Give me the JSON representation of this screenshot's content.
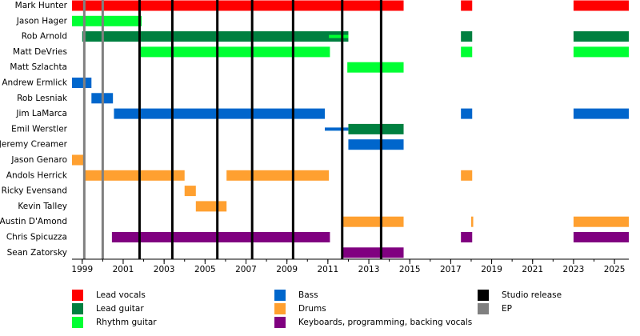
{
  "chart_data": {
    "type": "timeline",
    "categories": [
      "Mark Hunter",
      "Jason Hager",
      "Rob Arnold",
      "Matt DeVries",
      "Matt Szlachta",
      "Andrew Ermlick",
      "Rob Lesniak",
      "Jim LaMarca",
      "Emil Werstler",
      "Jeremy Creamer",
      "Jason Genaro",
      "Andols Herrick",
      "Ricky Evensand",
      "Kevin Talley",
      "Austin D'Amond",
      "Chris Spicuzza",
      "Sean Zatorsky"
    ],
    "xlim": [
      1998.5,
      2025.7
    ],
    "xticks": [
      1999,
      2001,
      2003,
      2005,
      2007,
      2009,
      2011,
      2013,
      2015,
      2017,
      2019,
      2021,
      2023,
      2025
    ],
    "series": [
      {
        "name": "Lead vocals",
        "color": "#ff0000",
        "bars": [
          {
            "member": "Mark Hunter",
            "start": 1998.5,
            "end": 2014.7
          },
          {
            "member": "Mark Hunter",
            "start": 2017.5,
            "end": 2018.05
          },
          {
            "member": "Mark Hunter",
            "start": 2023,
            "end": 2025.7
          }
        ]
      },
      {
        "name": "Lead guitar",
        "color": "#008040",
        "bars": [
          {
            "member": "Jason Hager",
            "start": 1998.5,
            "end": 1999,
            "thin": true
          },
          {
            "member": "Rob Arnold",
            "start": 1999,
            "end": 2012
          },
          {
            "member": "Rob Arnold",
            "start": 2017.5,
            "end": 2018.05
          },
          {
            "member": "Rob Arnold",
            "start": 2023,
            "end": 2025.7
          },
          {
            "member": "Emil Werstler",
            "start": 2012,
            "end": 2014.7
          }
        ]
      },
      {
        "name": "Rhythm guitar",
        "color": "#00ff33",
        "bars": [
          {
            "member": "Jason Hager",
            "start": 1998.5,
            "end": 2001.9
          },
          {
            "member": "Rob Arnold",
            "start": 2011.05,
            "end": 2012,
            "thin": true
          },
          {
            "member": "Matt DeVries",
            "start": 2001.85,
            "end": 2011.1
          },
          {
            "member": "Matt DeVries",
            "start": 2017.5,
            "end": 2018.05
          },
          {
            "member": "Matt DeVries",
            "start": 2023,
            "end": 2025.7
          },
          {
            "member": "Matt Szlachta",
            "start": 2011.95,
            "end": 2014.7
          }
        ]
      },
      {
        "name": "Bass",
        "color": "#0066cc",
        "bars": [
          {
            "member": "Andrew Ermlick",
            "start": 1998.5,
            "end": 1999.45
          },
          {
            "member": "Rob Lesniak",
            "start": 1999.45,
            "end": 2000.5
          },
          {
            "member": "Jim LaMarca",
            "start": 2000.55,
            "end": 2010.85
          },
          {
            "member": "Jim LaMarca",
            "start": 2017.5,
            "end": 2018.05
          },
          {
            "member": "Jim LaMarca",
            "start": 2023,
            "end": 2025.7
          },
          {
            "member": "Emil Werstler",
            "start": 2010.85,
            "end": 2012,
            "thin": true
          },
          {
            "member": "Jeremy Creamer",
            "start": 2012,
            "end": 2014.7
          }
        ]
      },
      {
        "name": "Drums",
        "color": "#ffa030",
        "bars": [
          {
            "member": "Jason Genaro",
            "start": 1998.5,
            "end": 1999.08
          },
          {
            "member": "Andols Herrick",
            "start": 1999.1,
            "end": 2004
          },
          {
            "member": "Andols Herrick",
            "start": 2006.05,
            "end": 2011.05
          },
          {
            "member": "Andols Herrick",
            "start": 2017.5,
            "end": 2018.05
          },
          {
            "member": "Ricky Evensand",
            "start": 2004,
            "end": 2004.55
          },
          {
            "member": "Kevin Talley",
            "start": 2004.55,
            "end": 2006.05
          },
          {
            "member": "Austin D'Amond",
            "start": 2011.7,
            "end": 2014.7
          },
          {
            "member": "Austin D'Amond",
            "start": 2018,
            "end": 2018.1
          },
          {
            "member": "Austin D'Amond",
            "start": 2023,
            "end": 2025.7
          }
        ]
      },
      {
        "name": "Keyboards, programming, backing vocals",
        "color": "#800080",
        "bars": [
          {
            "member": "Chris Spicuzza",
            "start": 2000.45,
            "end": 2011.1
          },
          {
            "member": "Chris Spicuzza",
            "start": 2017.5,
            "end": 2018.05
          },
          {
            "member": "Chris Spicuzza",
            "start": 2023,
            "end": 2025.7
          },
          {
            "member": "Sean Zatorsky",
            "start": 2011.7,
            "end": 2014.7
          }
        ]
      }
    ],
    "lines": [
      {
        "name": "Studio release",
        "color": "#000000",
        "x": [
          2001.8,
          2003.4,
          2005.6,
          2007.3,
          2009.3,
          2011.7,
          2013.6
        ]
      },
      {
        "name": "EP",
        "color": "#808080",
        "x": [
          1999.1,
          2000
        ]
      }
    ]
  }
}
